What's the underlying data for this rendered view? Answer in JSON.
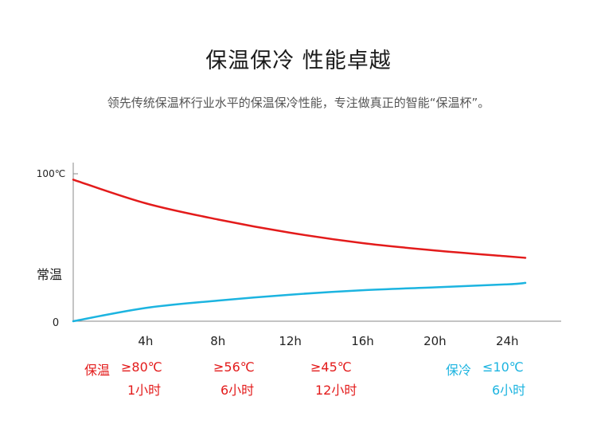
{
  "title": "保温保冷 性能卓越",
  "subtitle": "领先传统保温杯行业水平的保温保冷性能，专注做真正的智能“保温杯”。",
  "colors": {
    "hot": "#e31b1b",
    "cold": "#1cb4e0",
    "axis": "#888888"
  },
  "chart_data": {
    "type": "line",
    "x_ticks": [
      "4h",
      "8h",
      "12h",
      "16h",
      "20h",
      "24h"
    ],
    "x_tick_values": [
      4,
      8,
      12,
      16,
      20,
      24
    ],
    "y_ticks": [
      {
        "label": "100℃",
        "value": 100
      },
      {
        "label": "常温",
        "value": 25
      },
      {
        "label": "0",
        "value": 0
      }
    ],
    "xlim": [
      0,
      25
    ],
    "ylim": [
      0,
      100
    ],
    "series": [
      {
        "color": "#e31b1b",
        "x": [
          0,
          4,
          8,
          12,
          16,
          20,
          24,
          25
        ],
        "y": [
          96,
          80,
          69,
          60,
          53,
          48,
          44,
          43
        ]
      },
      {
        "color": "#1cb4e0",
        "x": [
          0,
          4,
          8,
          12,
          16,
          20,
          24,
          25
        ],
        "y": [
          0,
          9,
          14,
          18,
          21,
          23,
          25,
          26
        ]
      }
    ]
  },
  "annotations": {
    "hot_label": "保温",
    "hot": [
      {
        "temp": "≥80℃",
        "time": "1小时"
      },
      {
        "temp": "≥56℃",
        "time": "6小时"
      },
      {
        "temp": "≥45℃",
        "time": "12小时"
      }
    ],
    "cold_label": "保冷",
    "cold": {
      "temp": "≤10℃",
      "time": "6小时"
    }
  }
}
